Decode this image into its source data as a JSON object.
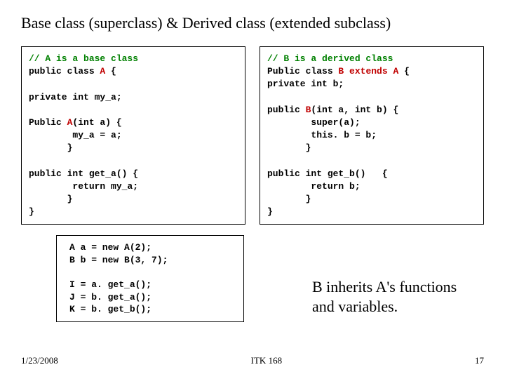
{
  "title": "Base class  (superclass) & Derived class (extended subclass)",
  "boxA": {
    "c1": "// A is a base class",
    "l2a": "public class ",
    "l2b": "A",
    "l2c": " {",
    "l4": "private int my_a;",
    "l6a": "Public ",
    "l6b": "A",
    "l6c": "(int a) {",
    "l7": "        my_a = a;",
    "l8": "       }",
    "l10": "public int get_a() {",
    "l11": "        return my_a;",
    "l12": "       }",
    "l13": "}"
  },
  "boxB": {
    "c1": "// B is a derived class",
    "l2a": "Public class ",
    "l2b": "B",
    "l2c": " extends ",
    "l2d": "A",
    "l2e": " {",
    "l3": "private int b;",
    "l5a": "public ",
    "l5b": "B",
    "l5c": "(int a, int b) {",
    "l6": "        super(a);",
    "l7": "        this. b = b;",
    "l8": "       }",
    "l10": "public int get_b()   {",
    "l11": "        return b;",
    "l12": "       }",
    "l13": "}"
  },
  "usage": {
    "l1": "A a = new A(2);",
    "l2": "B b = new B(3, 7);",
    "l4": "I = a. get_a();",
    "l5": "J = b. get_a();",
    "l6": "K = b. get_b();"
  },
  "note": "B inherits A's functions and variables.",
  "footer": {
    "date": "1/23/2008",
    "course": "ITK 168",
    "page": "17"
  }
}
